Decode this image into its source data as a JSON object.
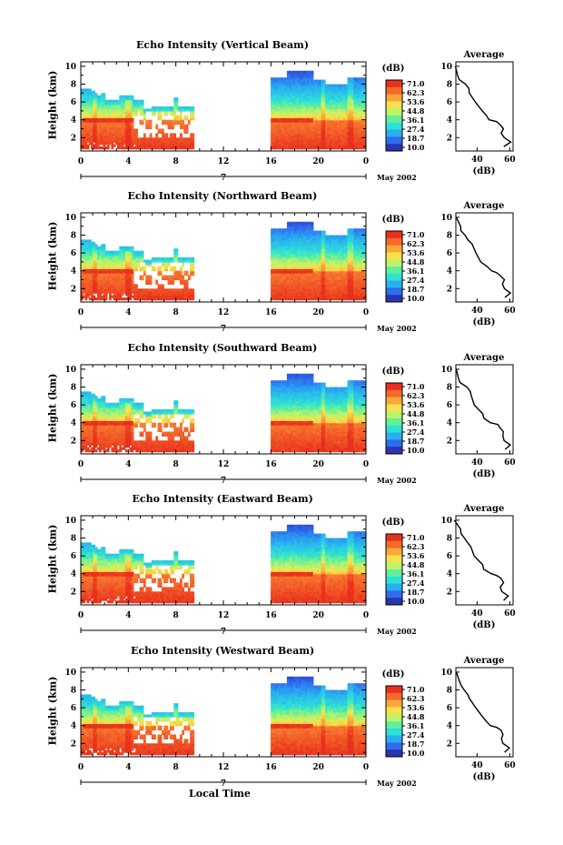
{
  "chart_data": [
    {
      "type": "heatmap",
      "title": "Echo Intensity (Vertical Beam)",
      "ylabel": "Height (km)",
      "date_label": "May 2002"
    },
    {
      "type": "heatmap",
      "title": "Echo Intensity (Northward Beam)",
      "ylabel": "Height (km)",
      "date_label": "May 2002"
    },
    {
      "type": "heatmap",
      "title": "Echo Intensity (Southward Beam)",
      "ylabel": "Height (km)",
      "date_label": "May 2002"
    },
    {
      "type": "heatmap",
      "title": "Echo Intensity (Eastward Beam)",
      "ylabel": "Height (km)",
      "date_label": "May 2002"
    },
    {
      "type": "heatmap",
      "title": "Echo Intensity (Westward Beam)",
      "ylabel": "Height (km)",
      "date_label": "May 2002"
    }
  ],
  "shared": {
    "x_ticks": [
      "0",
      "4",
      "8",
      "12",
      "16",
      "20",
      "0"
    ],
    "x_range": [
      0,
      24
    ],
    "day_label": "7",
    "y_ticks": [
      "2",
      "4",
      "6",
      "8",
      "10"
    ],
    "y_range": [
      0.5,
      10.5
    ],
    "colorbar_unit": "(dB)",
    "colorbar_ticks": [
      "71.0",
      "62.3",
      "53.6",
      "44.8",
      "36.1",
      "27.4",
      "18.7",
      "10.0"
    ],
    "colorbar_colors": [
      "#e8301e",
      "#f5692a",
      "#fba73a",
      "#f7e14a",
      "#bef36a",
      "#62ef9a",
      "#2ee0d6",
      "#29b0f0",
      "#2f6cf0",
      "#2a35b0"
    ],
    "avg_title": "Average",
    "avg_xlabel": "(dB)",
    "avg_x_ticks": [
      "40",
      "60"
    ],
    "avg_y_ticks": [
      "2",
      "4",
      "6",
      "8",
      "10"
    ],
    "xlabel": "Local Time",
    "profile_values": [
      {
        "height": 1.0,
        "db": 57
      },
      {
        "height": 1.5,
        "db": 60
      },
      {
        "height": 2.0,
        "db": 56
      },
      {
        "height": 2.5,
        "db": 55
      },
      {
        "height": 3.0,
        "db": 56
      },
      {
        "height": 3.5,
        "db": 54
      },
      {
        "height": 3.8,
        "db": 52
      },
      {
        "height": 4.0,
        "db": 48
      },
      {
        "height": 4.5,
        "db": 45
      },
      {
        "height": 5.0,
        "db": 43
      },
      {
        "height": 6.0,
        "db": 39
      },
      {
        "height": 7.0,
        "db": 36
      },
      {
        "height": 7.5,
        "db": 35
      },
      {
        "height": 8.0,
        "db": 33
      },
      {
        "height": 8.5,
        "db": 30
      },
      {
        "height": 9.0,
        "db": 29
      },
      {
        "height": 10.0,
        "db": 27
      }
    ]
  }
}
